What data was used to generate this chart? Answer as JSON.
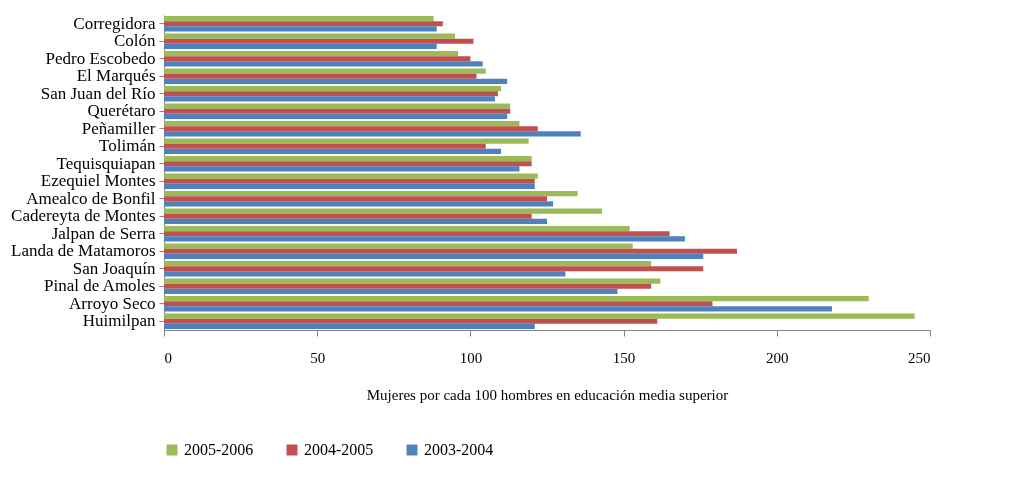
{
  "chart_data": {
    "type": "bar",
    "orientation": "horizontal",
    "xlabel": "Mujeres por cada 100 hombres en educación media superior",
    "categories": [
      "Corregidora",
      "Colón",
      "Pedro Escobedo",
      "El Marqués ",
      "San Juan del Río",
      "Querétaro",
      "Peñamiller",
      "Tolimán",
      "Tequisquiapan",
      "Ezequiel Montes ",
      "Amealco de Bonfil",
      "Cadereyta de Montes",
      "Jalpan de Serra",
      "Landa de Matamoros",
      "San Joaquín",
      "Pinal de Amoles",
      "Arroyo Seco",
      "Huimilpan"
    ],
    "series": [
      {
        "name": "2005-2006",
        "color": "#9bbb59",
        "values": [
          88,
          95,
          96,
          105,
          110,
          113,
          116,
          119,
          120,
          122,
          135,
          143,
          152,
          153,
          159,
          162,
          230,
          245
        ]
      },
      {
        "name": "2004-2005",
        "color": "#c0504d",
        "values": [
          91,
          101,
          100,
          102,
          109,
          113,
          122,
          105,
          120,
          121,
          125,
          120,
          165,
          187,
          176,
          159,
          179,
          161
        ]
      },
      {
        "name": "2003-2004",
        "color": "#4f81bd",
        "values": [
          89,
          89,
          104,
          112,
          108,
          112,
          136,
          110,
          116,
          121,
          127,
          125,
          170,
          176,
          131,
          148,
          218,
          121
        ]
      }
    ],
    "xlim": [
      0,
      250
    ],
    "xticks": [
      0,
      50,
      100,
      150,
      200,
      250
    ],
    "legend": "bottom",
    "grid": false
  }
}
